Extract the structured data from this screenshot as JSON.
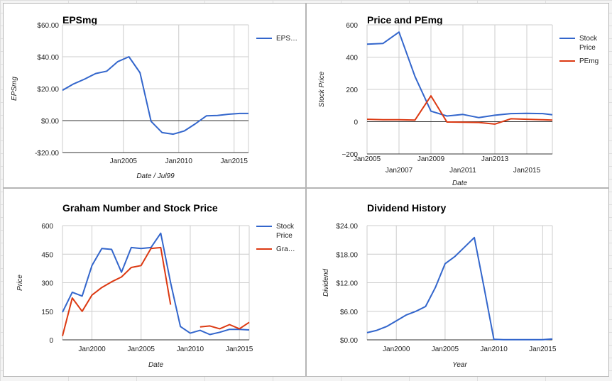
{
  "colors": {
    "blue": "#3366cc",
    "red": "#dc3912",
    "grid": "#cccccc",
    "zero": "#333333"
  },
  "chart_data": [
    {
      "id": "eps",
      "type": "line",
      "title": "EPSmg",
      "xlabel": "Date / Jul99",
      "ylabel": "EPSmg",
      "xlim": [
        1999.5,
        2016.3
      ],
      "ylim": [
        -20,
        60
      ],
      "yticks": [
        {
          "value": 60,
          "label": "$60.00"
        },
        {
          "value": 40,
          "label": "$40.00"
        },
        {
          "value": 20,
          "label": "$20.00"
        },
        {
          "value": 0,
          "label": "$0.00"
        },
        {
          "value": -20,
          "label": "-$20.00"
        }
      ],
      "xticks": [
        {
          "value": 2005,
          "label": "Jan2005"
        },
        {
          "value": 2010,
          "label": "Jan2010"
        },
        {
          "value": 2015,
          "label": "Jan2015"
        }
      ],
      "zero_line": true,
      "series": [
        {
          "name": "EPS…",
          "color": "#3366cc",
          "x": [
            1999.5,
            2000.5,
            2001.5,
            2002.5,
            2003.5,
            2004.5,
            2005.5,
            2006.5,
            2007.5,
            2008.5,
            2009.5,
            2010.5,
            2011.5,
            2012.5,
            2013.5,
            2014.5,
            2015.5,
            2016.3
          ],
          "y": [
            19,
            23,
            26,
            29.5,
            31,
            37,
            40,
            30,
            -0.5,
            -7.5,
            -8.5,
            -6.5,
            -2,
            3,
            3.2,
            4,
            4.5,
            4.5
          ]
        }
      ],
      "legend": "right"
    },
    {
      "id": "price_pe",
      "type": "line",
      "title": "Price and PEmg",
      "xlabel": "Date",
      "ylabel": "Stock Price",
      "xlim": [
        2005,
        2016.6
      ],
      "ylim": [
        -200,
        600
      ],
      "yticks": [
        {
          "value": 600,
          "label": "600"
        },
        {
          "value": 400,
          "label": "400"
        },
        {
          "value": 200,
          "label": "200"
        },
        {
          "value": 0,
          "label": "0"
        },
        {
          "value": -200,
          "label": "−200"
        }
      ],
      "xticks": [
        {
          "value": 2005,
          "label": "Jan2005",
          "row": 1
        },
        {
          "value": 2007,
          "label": "Jan2007",
          "row": 2
        },
        {
          "value": 2009,
          "label": "Jan2009",
          "row": 1
        },
        {
          "value": 2011,
          "label": "Jan2011",
          "row": 2
        },
        {
          "value": 2013,
          "label": "Jan2013",
          "row": 1
        },
        {
          "value": 2015,
          "label": "Jan2015",
          "row": 2
        }
      ],
      "zero_line": true,
      "series": [
        {
          "name": "Stock Price",
          "color": "#3366cc",
          "x": [
            2005,
            2006,
            2007,
            2008,
            2009,
            2010,
            2011,
            2012,
            2013,
            2014,
            2015,
            2016,
            2016.6
          ],
          "y": [
            480,
            485,
            555,
            280,
            65,
            35,
            45,
            25,
            40,
            50,
            52,
            50,
            43
          ]
        },
        {
          "name": "PEmg",
          "color": "#dc3912",
          "x": [
            2005,
            2006,
            2007,
            2008,
            2009,
            2010,
            2011,
            2012,
            2013,
            2014,
            2015,
            2016,
            2016.6
          ],
          "y": [
            15,
            12,
            12,
            10,
            160,
            -2,
            -3,
            -5,
            -15,
            18,
            15,
            12,
            10
          ]
        }
      ],
      "legend": "right"
    },
    {
      "id": "graham",
      "type": "line",
      "title": "Graham Number and Stock Price",
      "xlabel": "Date",
      "ylabel": "Price",
      "xlim": [
        1997,
        2016
      ],
      "ylim": [
        0,
        600
      ],
      "yticks": [
        {
          "value": 600,
          "label": "600"
        },
        {
          "value": 450,
          "label": "450"
        },
        {
          "value": 300,
          "label": "300"
        },
        {
          "value": 150,
          "label": "150"
        },
        {
          "value": 0,
          "label": "0"
        }
      ],
      "xticks": [
        {
          "value": 2000,
          "label": "Jan2000"
        },
        {
          "value": 2005,
          "label": "Jan2005"
        },
        {
          "value": 2010,
          "label": "Jan2010"
        },
        {
          "value": 2015,
          "label": "Jan2015"
        }
      ],
      "zero_line": false,
      "series": [
        {
          "name": "Stock Price",
          "color": "#3366cc",
          "x": [
            1997,
            1998,
            1999,
            2000,
            2001,
            2002,
            2003,
            2004,
            2005,
            2006,
            2007,
            2008,
            2009,
            2010,
            2011,
            2012,
            2013,
            2014,
            2015,
            2016
          ],
          "y": [
            145,
            250,
            230,
            390,
            480,
            475,
            355,
            485,
            480,
            485,
            560,
            300,
            70,
            35,
            50,
            28,
            40,
            55,
            55,
            52
          ]
        },
        {
          "name": "Gra…",
          "color": "#dc3912",
          "segments": [
            {
              "x": [
                1997,
                1998,
                1999,
                2000,
                2001,
                2002,
                2003,
                2004,
                2005,
                2006,
                2007,
                2008
              ],
              "y": [
                20,
                220,
                150,
                235,
                275,
                305,
                330,
                380,
                390,
                480,
                485,
                185
              ]
            },
            {
              "x": [
                2011,
                2012,
                2013,
                2014,
                2015,
                2016
              ],
              "y": [
                68,
                73,
                58,
                80,
                58,
                92
              ]
            }
          ]
        }
      ],
      "legend": "right"
    },
    {
      "id": "dividend",
      "type": "line",
      "title": "Dividend History",
      "xlabel": "Year",
      "ylabel": "Dividend",
      "xlim": [
        1997,
        2016
      ],
      "ylim": [
        0,
        24
      ],
      "yticks": [
        {
          "value": 24,
          "label": "$24.00"
        },
        {
          "value": 18,
          "label": "$18.00"
        },
        {
          "value": 12,
          "label": "$12.00"
        },
        {
          "value": 6,
          "label": "$6.00"
        },
        {
          "value": 0,
          "label": "$0.00"
        }
      ],
      "xticks": [
        {
          "value": 2000,
          "label": "Jan2000"
        },
        {
          "value": 2005,
          "label": "Jan2005"
        },
        {
          "value": 2010,
          "label": "Jan2010"
        },
        {
          "value": 2015,
          "label": "Jan2015"
        }
      ],
      "zero_line": false,
      "series": [
        {
          "name": "",
          "color": "#3366cc",
          "x": [
            1997,
            1998,
            1999,
            2000,
            2001,
            2002,
            2003,
            2004,
            2005,
            2006,
            2007,
            2008,
            2009,
            2010,
            2011,
            2012,
            2013,
            2014,
            2015,
            2016
          ],
          "y": [
            1.5,
            2.0,
            2.8,
            4.0,
            5.2,
            6.0,
            7.0,
            11.0,
            16.0,
            17.5,
            19.5,
            21.5,
            11.0,
            0.1,
            0.05,
            0.05,
            0.05,
            0.05,
            0.05,
            0.2
          ]
        }
      ],
      "legend": "none"
    }
  ]
}
